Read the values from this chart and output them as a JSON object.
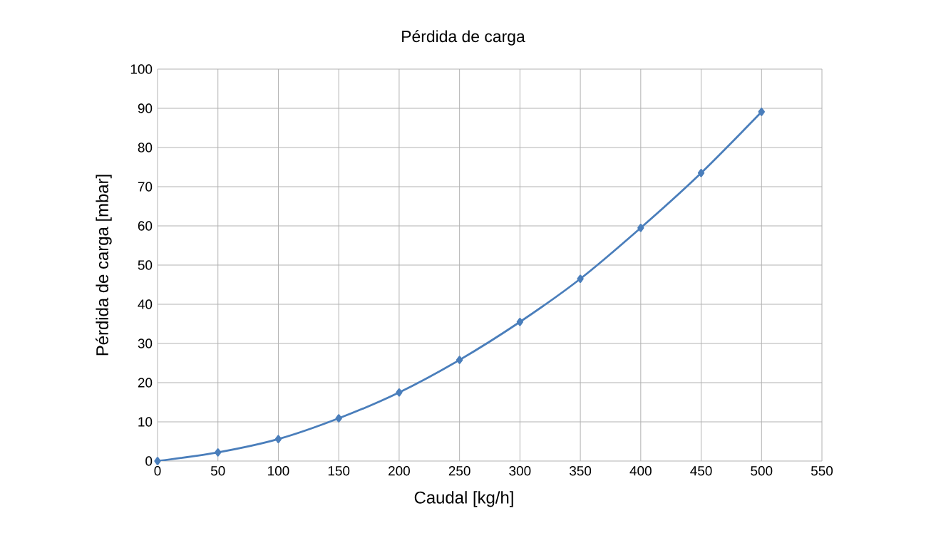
{
  "chart_data": {
    "type": "line",
    "title": "Pérdida de carga",
    "xlabel": "Caudal [kg/h]",
    "ylabel": "Pérdida de carga [mbar]",
    "x": [
      0,
      50,
      100,
      150,
      200,
      250,
      300,
      350,
      400,
      450,
      500
    ],
    "series": [
      {
        "color": "#4a7ebb",
        "values": [
          0,
          2.2,
          5.6,
          10.9,
          17.5,
          25.8,
          35.5,
          46.5,
          59.5,
          73.5,
          89.1
        ]
      }
    ],
    "xlim": [
      0,
      550
    ],
    "ylim": [
      0,
      100
    ],
    "xticks": [
      0,
      50,
      100,
      150,
      200,
      250,
      300,
      350,
      400,
      450,
      500,
      550
    ],
    "yticks": [
      0,
      10,
      20,
      30,
      40,
      50,
      60,
      70,
      80,
      90,
      100
    ],
    "grid": true,
    "marker": "diamond",
    "line_style": "solid"
  }
}
